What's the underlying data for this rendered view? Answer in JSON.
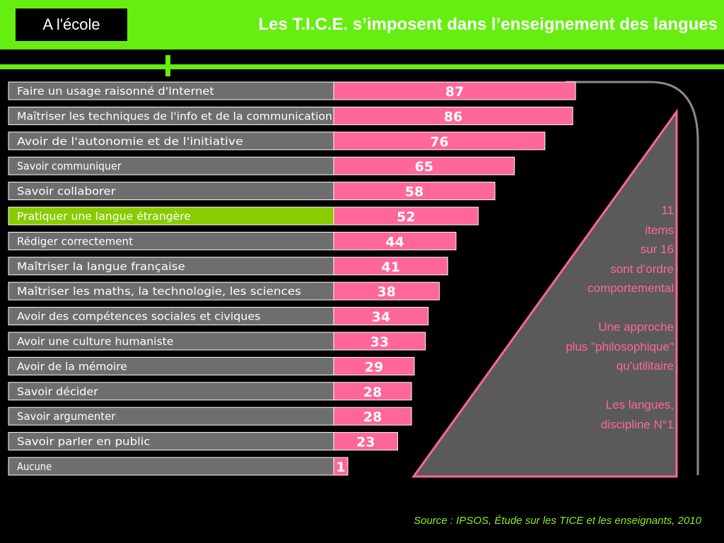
{
  "header": {
    "tag": "A l'école",
    "title": "Les T.I.C.E. s’imposent dans l’enseignement des langues"
  },
  "chart_data": {
    "type": "bar",
    "orientation": "horizontal",
    "categories": [
      "Faire un usage raisonné d'Internet",
      "Maîtriser les techniques de l'info et de la communication",
      "Avoir de l'autonomie et de l'initiative",
      "Savoir communiquer",
      "Savoir collaborer",
      "Pratiquer une langue étrangère",
      "Rédiger correctement",
      "Maîtriser la langue française",
      "Maîtriser les maths, la technologie, les sciences",
      "Avoir des compétences sociales et civiques",
      "Avoir une culture humaniste",
      "Avoir de la mémoire",
      "Savoir décider",
      "Savoir argumenter",
      "Savoir parler en public",
      "Aucune"
    ],
    "values": [
      87,
      86,
      76,
      65,
      58,
      52,
      44,
      41,
      38,
      34,
      33,
      29,
      28,
      28,
      23,
      1
    ],
    "highlight_index": 5,
    "colors": {
      "label_bg": "#6e6e6e",
      "bar": "#ff6699",
      "highlight": "#88cc00",
      "accent": "#66ee11"
    }
  },
  "triangle_text": [
    "11",
    "items",
    "sur 16",
    "sont d’ordre",
    "comportemental",
    "",
    "Une approche",
    "plus \"philosophique\"",
    "qu’utilitaire",
    "",
    "Les langues,",
    "discipline N°1"
  ],
  "source": "Source : IPSOS, Étude sur les TICE et les enseignants, 2010"
}
